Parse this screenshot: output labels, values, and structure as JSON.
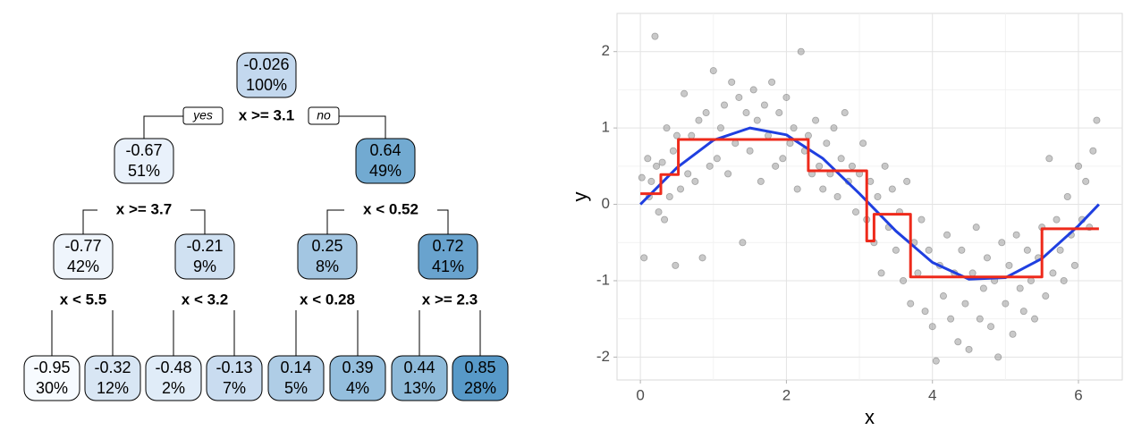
{
  "tree": {
    "nodes": [
      {
        "value": "-0.026",
        "pct": "100%",
        "fill": "#c3d8ee"
      },
      {
        "value": "-0.67",
        "pct": "51%",
        "fill": "#e9f1fb"
      },
      {
        "value": "0.64",
        "pct": "49%",
        "fill": "#72aad1"
      },
      {
        "value": "-0.77",
        "pct": "42%",
        "fill": "#eff5fc"
      },
      {
        "value": "-0.21",
        "pct": "9%",
        "fill": "#d0e1f2"
      },
      {
        "value": "0.25",
        "pct": "8%",
        "fill": "#a3c6e2"
      },
      {
        "value": "0.72",
        "pct": "41%",
        "fill": "#69a3ce"
      },
      {
        "value": "-0.95",
        "pct": "30%",
        "fill": "#f7fbff"
      },
      {
        "value": "-0.32",
        "pct": "12%",
        "fill": "#d8e6f4"
      },
      {
        "value": "-0.48",
        "pct": "2%",
        "fill": "#e0ecf8"
      },
      {
        "value": "-0.13",
        "pct": "7%",
        "fill": "#c9dcf0"
      },
      {
        "value": "0.14",
        "pct": "5%",
        "fill": "#afcde6"
      },
      {
        "value": "0.39",
        "pct": "4%",
        "fill": "#94bedd"
      },
      {
        "value": "0.44",
        "pct": "13%",
        "fill": "#8ebad9"
      },
      {
        "value": "0.85",
        "pct": "28%",
        "fill": "#5799c8"
      }
    ],
    "splits": [
      "x >= 3.1",
      "x >= 3.7",
      "x < 0.52",
      "x < 5.5",
      "x < 3.2",
      "x < 0.28",
      "x >= 2.3"
    ],
    "yes": "yes",
    "no": "no"
  },
  "chart_data": {
    "type": "scatter",
    "x_label": "x",
    "y_label": "y",
    "xlim": [
      -0.32,
      6.6
    ],
    "ylim": [
      -2.3,
      2.5
    ],
    "xticks": [
      0,
      2,
      4,
      6
    ],
    "yticks": [
      -2,
      -1,
      0,
      1,
      2
    ],
    "grid": true,
    "series": [
      {
        "type": "scatter",
        "color": "#888888",
        "x": [
          0.02,
          0.05,
          0.1,
          0.12,
          0.15,
          0.2,
          0.22,
          0.25,
          0.3,
          0.33,
          0.36,
          0.4,
          0.45,
          0.48,
          0.5,
          0.55,
          0.6,
          0.65,
          0.7,
          0.75,
          0.8,
          0.85,
          0.9,
          0.95,
          1.0,
          1.05,
          1.1,
          1.15,
          1.2,
          1.25,
          1.3,
          1.35,
          1.4,
          1.45,
          1.5,
          1.55,
          1.6,
          1.65,
          1.7,
          1.75,
          1.8,
          1.85,
          1.9,
          1.95,
          2.0,
          2.05,
          2.1,
          2.15,
          2.2,
          2.25,
          2.3,
          2.35,
          2.4,
          2.45,
          2.5,
          2.55,
          2.6,
          2.65,
          2.7,
          2.75,
          2.8,
          2.85,
          2.9,
          2.95,
          3.0,
          3.05,
          3.1,
          3.15,
          3.2,
          3.25,
          3.3,
          3.35,
          3.4,
          3.45,
          3.5,
          3.55,
          3.6,
          3.65,
          3.7,
          3.75,
          3.8,
          3.85,
          3.9,
          3.95,
          4.0,
          4.05,
          4.1,
          4.15,
          4.2,
          4.25,
          4.3,
          4.35,
          4.4,
          4.45,
          4.5,
          4.55,
          4.6,
          4.65,
          4.7,
          4.75,
          4.8,
          4.85,
          4.9,
          4.95,
          5.0,
          5.05,
          5.1,
          5.15,
          5.2,
          5.25,
          5.3,
          5.35,
          5.4,
          5.45,
          5.5,
          5.55,
          5.6,
          5.65,
          5.7,
          5.75,
          5.8,
          5.85,
          5.9,
          5.95,
          6.0,
          6.05,
          6.1,
          6.15,
          6.2,
          6.25
        ],
        "values": [
          0.35,
          -0.7,
          0.6,
          0.1,
          0.3,
          2.2,
          0.5,
          -0.1,
          0.55,
          -0.2,
          1.0,
          0.1,
          0.7,
          -0.8,
          0.9,
          0.2,
          1.45,
          0.4,
          0.9,
          0.3,
          1.1,
          -0.7,
          1.2,
          0.5,
          1.75,
          0.6,
          1.0,
          1.3,
          0.4,
          1.6,
          0.8,
          1.4,
          -0.5,
          1.2,
          0.7,
          1.5,
          1.1,
          0.3,
          1.3,
          0.9,
          1.6,
          0.5,
          1.2,
          0.6,
          1.4,
          0.8,
          1.0,
          0.2,
          2.0,
          0.7,
          0.9,
          0.4,
          1.1,
          0.5,
          0.2,
          0.8,
          0.4,
          1.0,
          0.1,
          0.6,
          1.2,
          0.3,
          0.5,
          -0.1,
          0.4,
          0.8,
          -0.2,
          0.3,
          -0.5,
          0.1,
          -0.9,
          0.5,
          -0.3,
          0.2,
          -0.6,
          -0.1,
          -1.0,
          0.3,
          -1.3,
          -0.5,
          -0.9,
          -0.2,
          -1.4,
          -0.6,
          -1.6,
          -2.05,
          -0.8,
          -1.2,
          -0.4,
          -1.5,
          -0.9,
          -1.8,
          -0.6,
          -1.3,
          -1.9,
          -0.9,
          -0.3,
          -1.5,
          -1.1,
          -0.7,
          -1.6,
          -1.0,
          -2.0,
          -0.5,
          -1.3,
          -0.8,
          -1.7,
          -0.4,
          -1.1,
          -1.4,
          -0.6,
          -1.0,
          -1.5,
          -0.7,
          -0.3,
          -1.2,
          0.6,
          -0.9,
          -0.2,
          -0.6,
          -1.0,
          0.1,
          -0.4,
          -0.8,
          0.5,
          -0.2,
          0.3,
          -0.3,
          0.7,
          1.1
        ]
      },
      {
        "type": "line",
        "color": "#1f3fe0",
        "x": [
          0,
          0.5,
          1,
          1.5,
          2,
          2.5,
          3,
          3.5,
          4,
          4.5,
          5,
          5.5,
          6,
          6.28
        ],
        "values": [
          0,
          0.48,
          0.84,
          1.0,
          0.91,
          0.6,
          0.14,
          -0.35,
          -0.76,
          -0.98,
          -0.96,
          -0.71,
          -0.28,
          0
        ]
      },
      {
        "type": "line",
        "color": "#ee2a1b",
        "x": [
          0,
          0.28,
          0.28,
          0.52,
          0.52,
          2.3,
          2.3,
          3.1,
          3.1,
          3.2,
          3.2,
          3.7,
          3.7,
          5.5,
          5.5,
          6.28
        ],
        "values": [
          0.14,
          0.14,
          0.39,
          0.39,
          0.85,
          0.85,
          0.44,
          0.44,
          -0.48,
          -0.48,
          -0.13,
          -0.13,
          -0.95,
          -0.95,
          -0.32,
          -0.32
        ]
      }
    ]
  }
}
